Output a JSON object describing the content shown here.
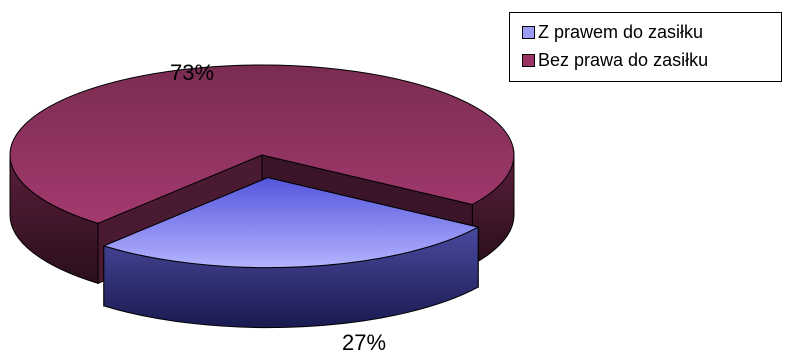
{
  "chart_data": {
    "type": "pie",
    "style": "3d-exploded",
    "series": [
      {
        "name": "Z prawem do zasiłku",
        "value": 27,
        "label": "27%",
        "color": "#9b9bf3"
      },
      {
        "name": "Bez prawa do zasiłku",
        "value": 73,
        "label": "73%",
        "color": "#993366"
      }
    ],
    "legend_position": "top-right"
  }
}
